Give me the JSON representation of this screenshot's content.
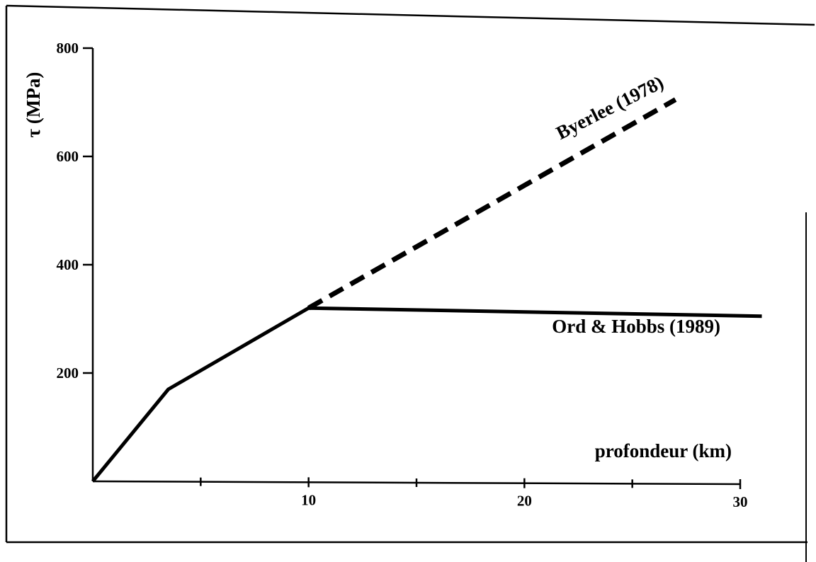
{
  "chart_data": {
    "type": "line",
    "xlabel": "profondeur (km)",
    "ylabel": "τ (MPa)",
    "xlim": [
      0,
      30
    ],
    "ylim": [
      0,
      800
    ],
    "x_ticks": [
      10,
      20,
      30
    ],
    "x_minor_ticks": [
      5,
      15,
      25
    ],
    "y_ticks": [
      200,
      400,
      600,
      800
    ],
    "grid": false,
    "series": [
      {
        "name": "Ord & Hobbs (1989)",
        "style": "solid",
        "points": [
          [
            0,
            0
          ],
          [
            3.5,
            170
          ],
          [
            10,
            320
          ],
          [
            31,
            305
          ]
        ]
      },
      {
        "name": "Byerlee (1978)",
        "style": "dashed",
        "points": [
          [
            10,
            320
          ],
          [
            27,
            705
          ]
        ]
      }
    ],
    "colors": {
      "line": "#000000",
      "frame": "#000000",
      "background": "#ffffff"
    }
  }
}
